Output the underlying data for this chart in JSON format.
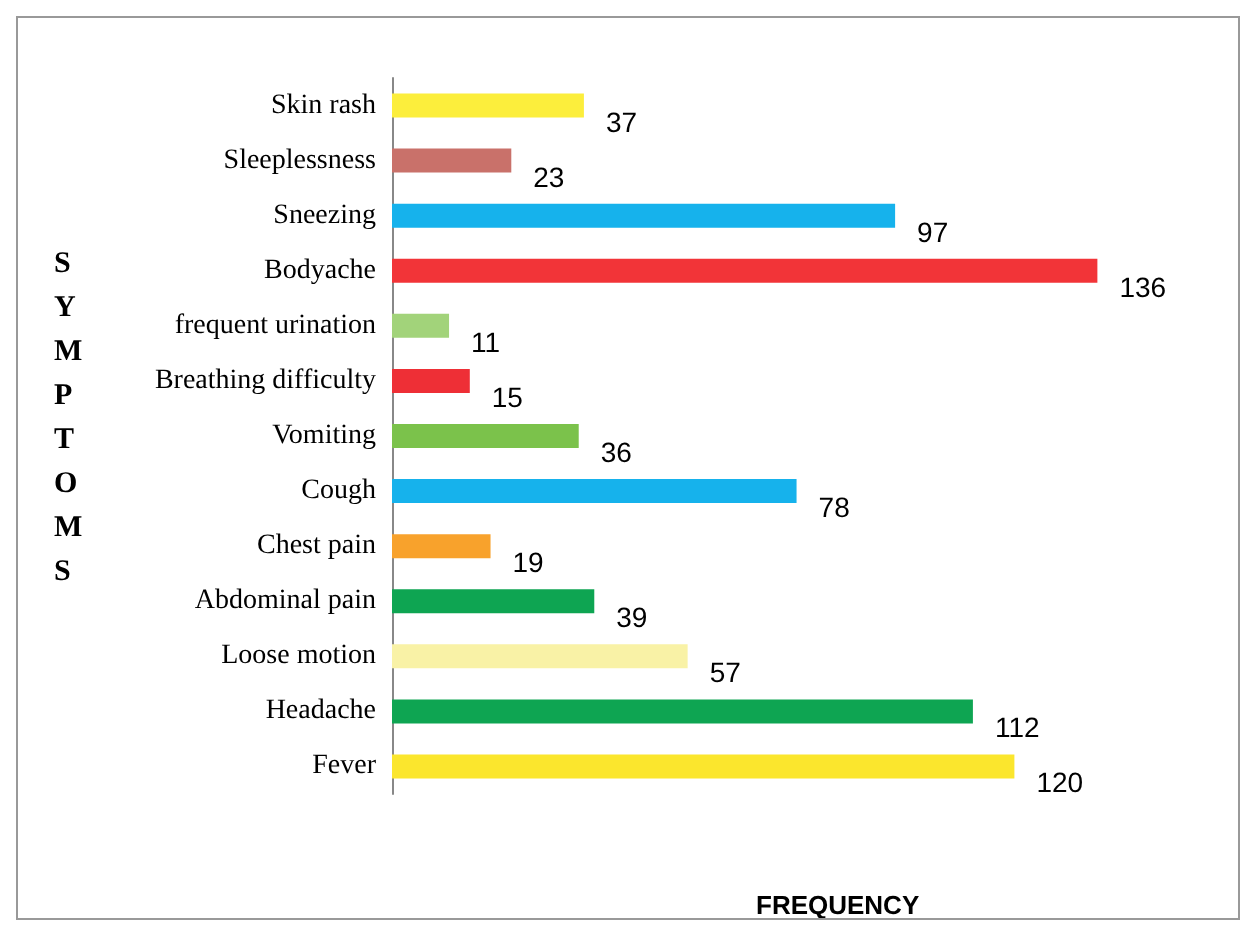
{
  "chart_data": {
    "type": "bar",
    "orientation": "horizontal",
    "xlabel": "FREQUENCY",
    "ylabel": "SYMPTOMS",
    "categories": [
      "Skin rash",
      "Sleeplessness",
      "Sneezing",
      "Bodyache",
      "frequent urination",
      "Breathing difficulty",
      "Vomiting",
      "Cough",
      "Chest pain",
      "Abdominal pain",
      "Loose motion",
      "Headache",
      "Fever"
    ],
    "values": [
      37,
      23,
      97,
      136,
      11,
      15,
      36,
      78,
      19,
      39,
      57,
      112,
      120
    ],
    "colors": [
      "#fcee3c",
      "#c9716a",
      "#16b2ec",
      "#f23438",
      "#a2d37a",
      "#ee2f36",
      "#7bc24b",
      "#16b2ec",
      "#f8a22c",
      "#0ea552",
      "#f9f2a6",
      "#0ea552",
      "#fbe62d"
    ],
    "data_labels": true,
    "tick_labels": "y"
  }
}
